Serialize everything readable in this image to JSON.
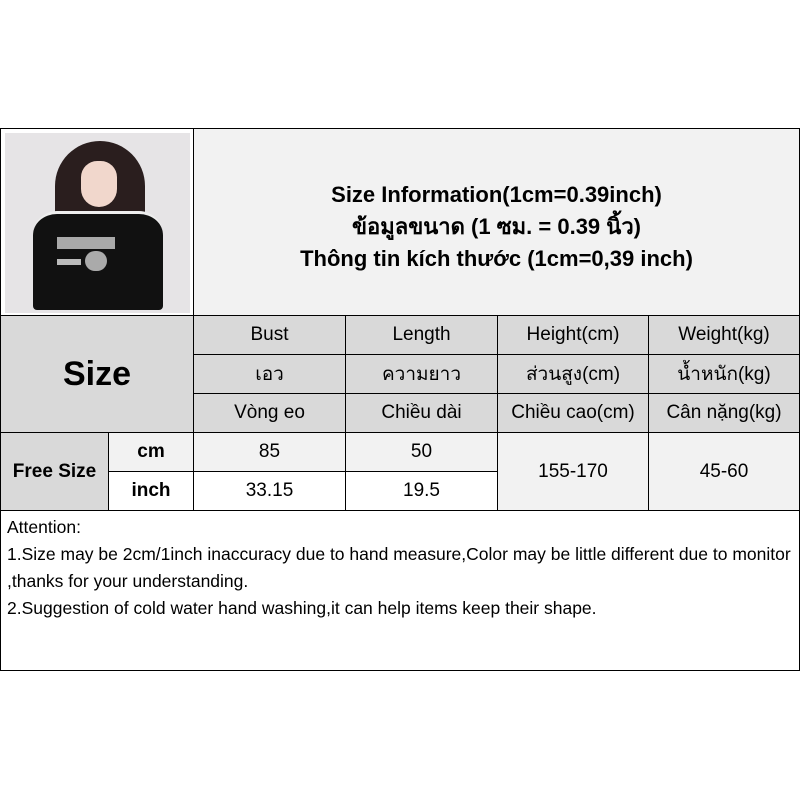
{
  "title": {
    "line1": "Size Information(1cm=0.39inch)",
    "line2": "ข้อมูลขนาด (1 ซม. = 0.39 นิ้ว)",
    "line3": "Thông tin kích thước (1cm=0,39 inch)"
  },
  "table": {
    "size_label": "Size",
    "headers": [
      {
        "en": "Bust",
        "th": "เอว",
        "vi": "Vòng eo"
      },
      {
        "en": "Length",
        "th": "ความยาว",
        "vi": "Chiều dài"
      },
      {
        "en": "Height(cm)",
        "th": "ส่วนสูง(cm)",
        "vi": "Chiều cao(cm)"
      },
      {
        "en": "Weight(kg)",
        "th": "น้ำหนัก(kg)",
        "vi": "Cân nặng(kg)"
      }
    ],
    "row": {
      "size": "Free Size",
      "cm_label": "cm",
      "inch_label": "inch",
      "bust_cm": "85",
      "length_cm": "50",
      "bust_inch": "33.15",
      "length_inch": "19.5",
      "height": "155-170",
      "weight": "45-60"
    }
  },
  "attention": {
    "heading": "Attention:",
    "note1": "1.Size may be 2cm/1inch inaccuracy due to hand measure,Color may be little different due to monitor ,thanks for your understanding.",
    "note2": "2.Suggestion of cold water hand washing,it can help items keep their shape."
  }
}
